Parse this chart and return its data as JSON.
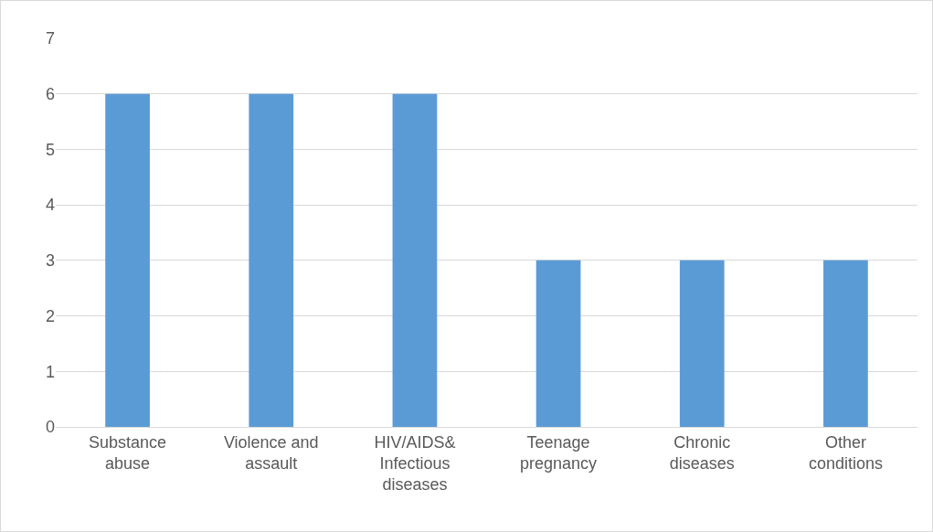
{
  "chart_data": {
    "type": "bar",
    "categories": [
      "Substance abuse",
      "Violence and assault",
      "HIV/AIDS& Infectious diseases",
      "Teenage pregnancy",
      "Chronic diseases",
      "Other conditions"
    ],
    "values": [
      6,
      6,
      6,
      3,
      3,
      3
    ],
    "color": "#5b9bd5",
    "ylim": [
      0,
      7
    ],
    "yticks": [
      0,
      1,
      2,
      3,
      4,
      5,
      6,
      7
    ],
    "grid": "y"
  }
}
